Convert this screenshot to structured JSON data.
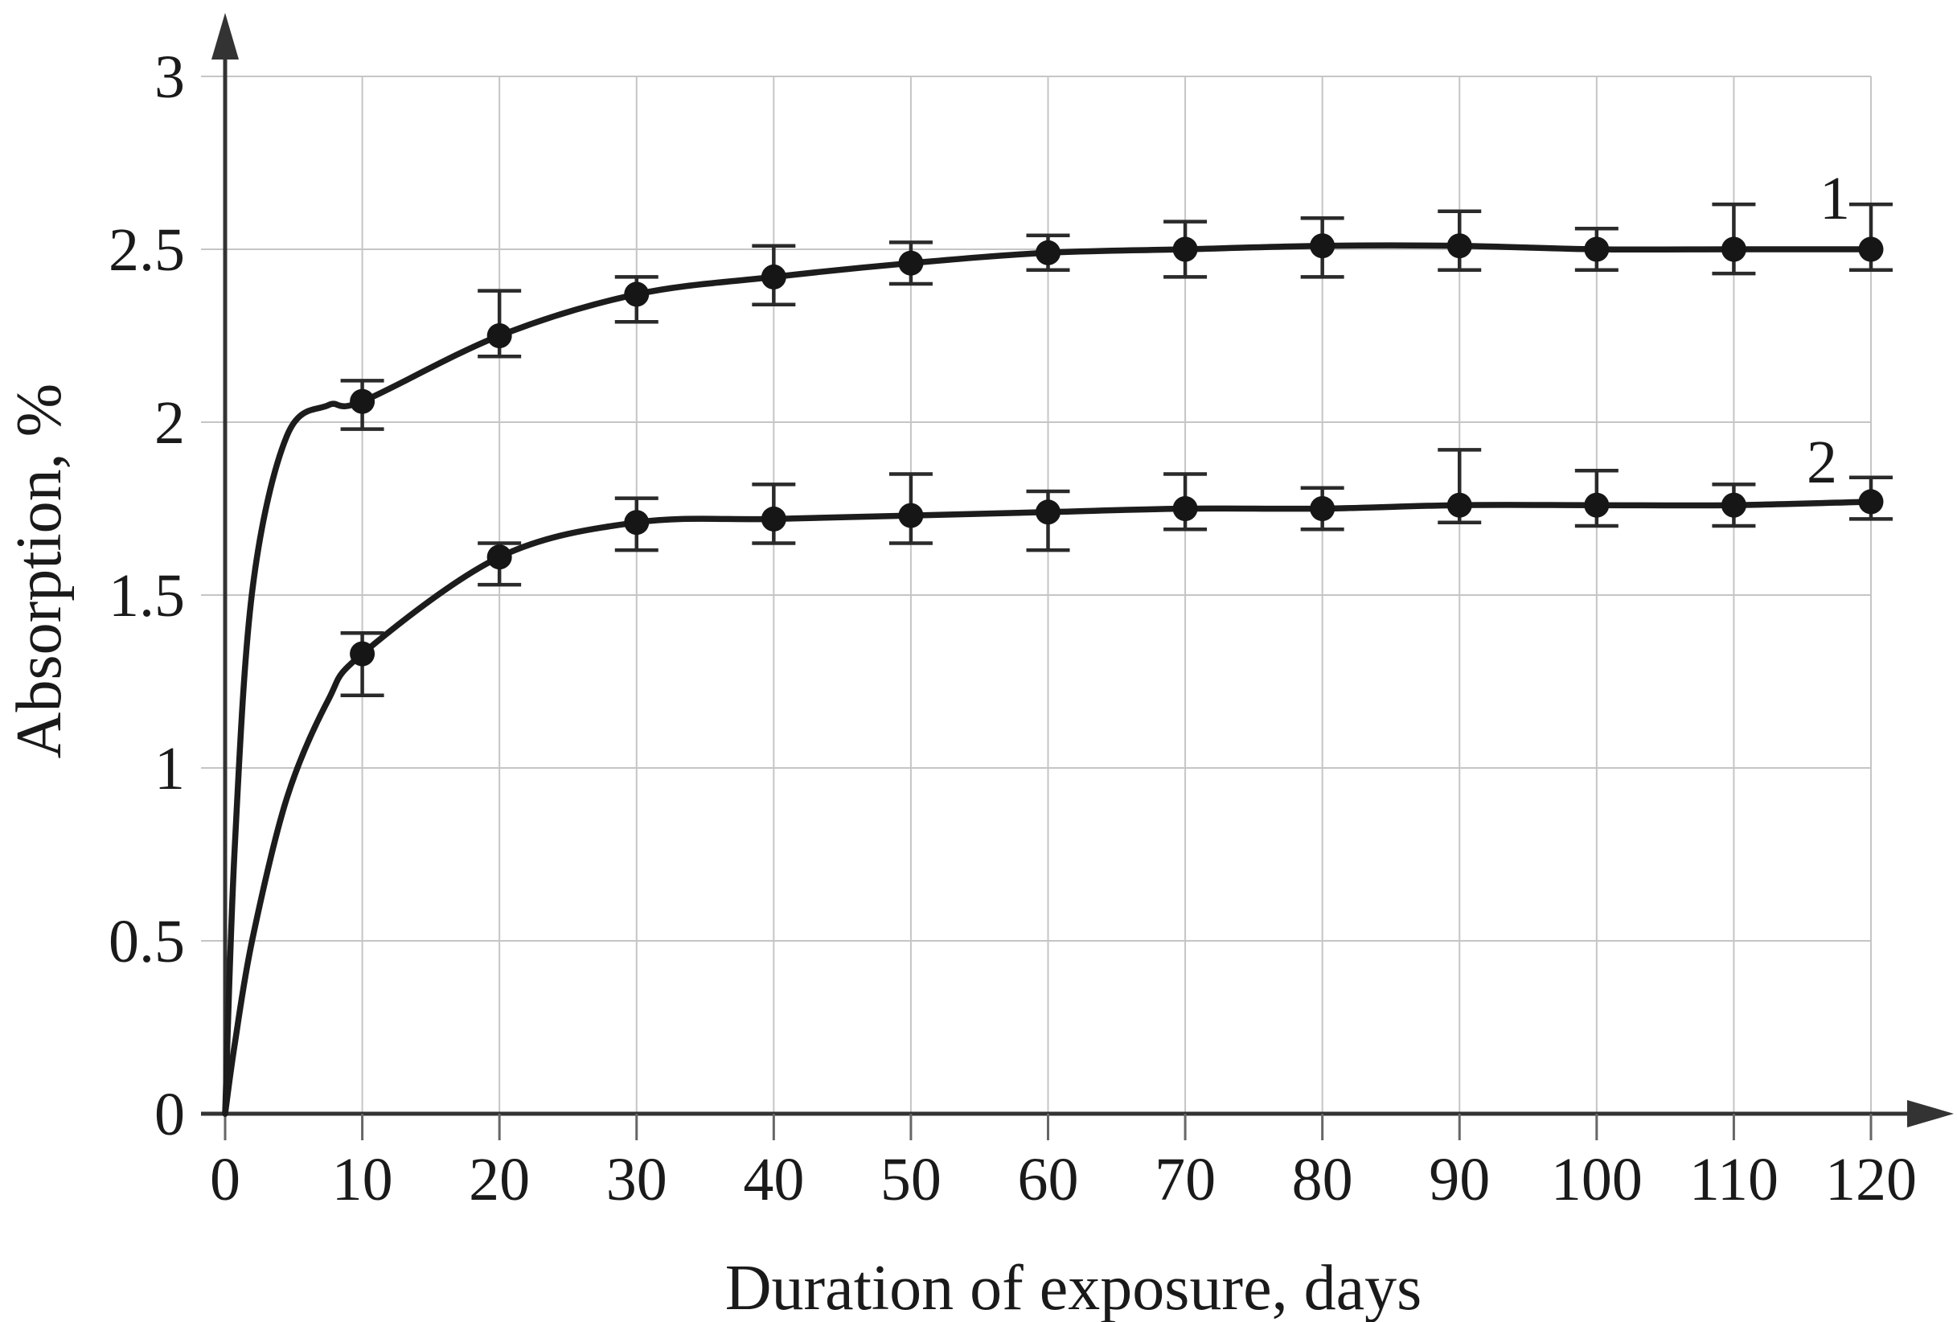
{
  "chart_data": {
    "type": "line",
    "title": "",
    "xlabel": "Duration of exposure, days",
    "ylabel": "Absorption, %",
    "x_ticks": [
      0,
      10,
      20,
      30,
      40,
      50,
      60,
      70,
      80,
      90,
      100,
      110,
      120
    ],
    "y_tick_values": [
      0,
      0.5,
      1,
      1.5,
      2,
      2.5,
      3
    ],
    "y_tick_labels": [
      "0",
      "0.5",
      "1",
      "1.5",
      "2",
      "2.5",
      "3"
    ],
    "xlim": [
      0,
      120
    ],
    "ylim": [
      0,
      3
    ],
    "grid": true,
    "legend_position": "inline-curve-labels",
    "x": [
      10,
      20,
      30,
      40,
      50,
      60,
      70,
      80,
      90,
      100,
      110,
      120
    ],
    "series": [
      {
        "name": "1",
        "starts_at_origin": true,
        "values": [
          2.06,
          2.25,
          2.37,
          2.42,
          2.46,
          2.49,
          2.5,
          2.51,
          2.51,
          2.5,
          2.5,
          2.5
        ],
        "err_plus": [
          0.06,
          0.13,
          0.05,
          0.09,
          0.06,
          0.05,
          0.08,
          0.08,
          0.1,
          0.06,
          0.13,
          0.13
        ],
        "err_minus": [
          0.08,
          0.06,
          0.08,
          0.08,
          0.06,
          0.05,
          0.08,
          0.09,
          0.07,
          0.06,
          0.07,
          0.06
        ]
      },
      {
        "name": "2",
        "starts_at_origin": true,
        "values": [
          1.33,
          1.61,
          1.71,
          1.72,
          1.73,
          1.74,
          1.75,
          1.75,
          1.76,
          1.76,
          1.76,
          1.77
        ],
        "err_plus": [
          0.06,
          0.04,
          0.07,
          0.1,
          0.12,
          0.06,
          0.1,
          0.06,
          0.16,
          0.1,
          0.06,
          0.07
        ],
        "err_minus": [
          0.12,
          0.08,
          0.08,
          0.07,
          0.08,
          0.11,
          0.06,
          0.06,
          0.05,
          0.06,
          0.06,
          0.05
        ]
      }
    ],
    "colors": {
      "curve": "#1c1c1c",
      "marker": "#161616",
      "errorbar": "#2a2a2a",
      "grid": "#c5c5c5",
      "axis": "#333333",
      "tick": "#666666",
      "text": "#1a1a1a",
      "background": "#ffffff"
    }
  }
}
